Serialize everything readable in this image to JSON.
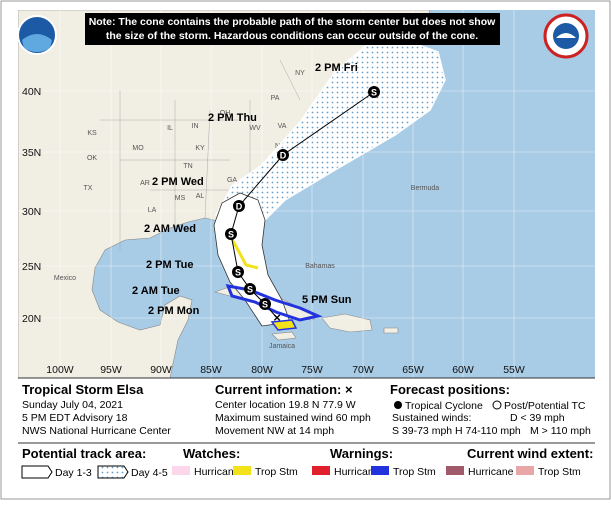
{
  "note": {
    "line1": "Note: The cone contains the probable path of the storm center but does not show",
    "line2": "the size of the storm. Hazardous conditions can occur outside of the cone."
  },
  "map": {
    "latitudes": [
      "40N",
      "35N",
      "30N",
      "25N",
      "20N"
    ],
    "longitudes": [
      "100W",
      "95W",
      "90W",
      "85W",
      "80W",
      "75W",
      "70W",
      "65W",
      "60W",
      "55W"
    ],
    "places": [
      "Mexico",
      "Bermuda",
      "Bahamas",
      "Jamaica",
      "TX",
      "OK",
      "KS",
      "AR",
      "MO",
      "LA",
      "MS",
      "AL",
      "GA",
      "TN",
      "KY",
      "IL",
      "IN",
      "OH",
      "WV",
      "VA",
      "NC",
      "SC",
      "FL",
      "PA",
      "NY"
    ],
    "forecast_labels": [
      "2 PM Fri",
      "2 PM Thu",
      "2 PM Wed",
      "2 AM Wed",
      "2 PM Tue",
      "2 AM Tue",
      "2 PM Mon",
      "5 PM Sun"
    ],
    "points": [
      "S",
      "D",
      "D",
      "S",
      "S",
      "S",
      "S"
    ]
  },
  "info": {
    "title": "Tropical Storm Elsa",
    "date": "Sunday July 04, 2021",
    "advisory": "5 PM EDT Advisory 18",
    "center": "NWS National Hurricane Center",
    "current_header": "Current information: ×",
    "location": "Center location 19.8 N 77.9 W",
    "wind": "Maximum sustained wind 60 mph",
    "movement": "Movement NW at 14 mph",
    "forecast_header": "Forecast positions:",
    "tc": "Tropical Cyclone",
    "ptc": "Post/Potential TC",
    "sustained": "Sustained winds:",
    "d": "D < 39 mph",
    "s": "S 39-73 mph",
    "h": "H 74-110 mph",
    "m": "M > 110 mph"
  },
  "legend": {
    "track_header": "Potential track area:",
    "day13": "Day 1-3",
    "day45": "Day 4-5",
    "watches_header": "Watches:",
    "watch_hurricane": "Hurricane",
    "watch_ts": "Trop Stm",
    "warnings_header": "Warnings:",
    "warn_hurricane": "Hurricane",
    "warn_ts": "Trop Stm",
    "extent_header": "Current wind extent:",
    "extent_hurricane": "Hurricane",
    "extent_ts": "Trop Stm"
  }
}
